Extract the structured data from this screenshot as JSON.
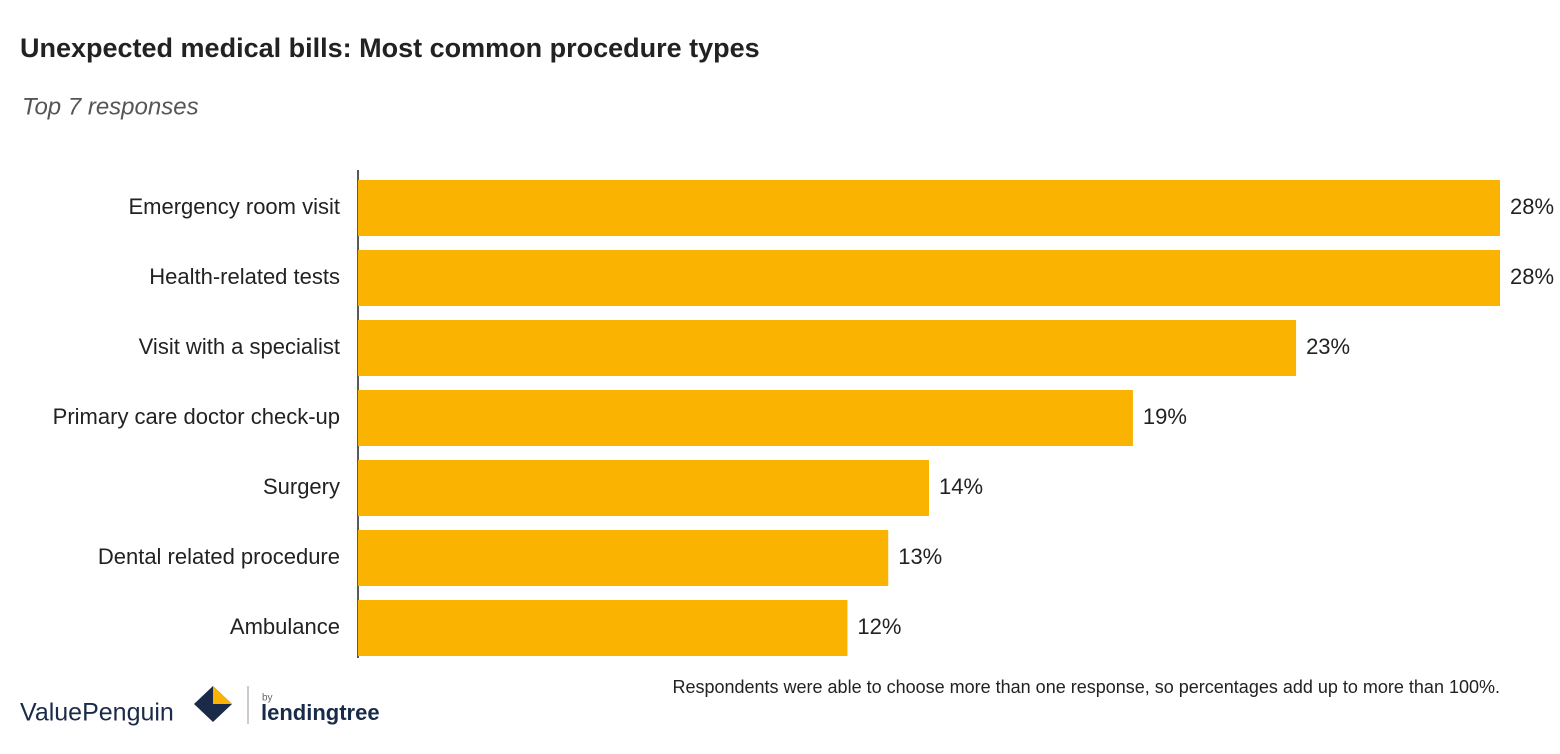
{
  "chart_data": {
    "type": "hbar",
    "title": "Unexpected medical bills: Most common procedure types",
    "subtitle": "Top 7 responses",
    "categories": [
      "Emergency room visit",
      "Health-related tests",
      "Visit with a specialist",
      "Primary care doctor check-up",
      "Surgery",
      "Dental related procedure",
      "Ambulance"
    ],
    "values": [
      28,
      28,
      23,
      19,
      14,
      13,
      12
    ],
    "value_labels": [
      "28%",
      "28%",
      "23%",
      "19%",
      "14%",
      "13%",
      "12%"
    ],
    "color": "#f9b300",
    "xlim": [
      0,
      28
    ],
    "note": "Respondents were able to choose more than one response, so percentages add up to more than 100%.",
    "branding": {
      "name": "ValuePenguin",
      "by": "by",
      "partner": "lendingtree"
    }
  }
}
